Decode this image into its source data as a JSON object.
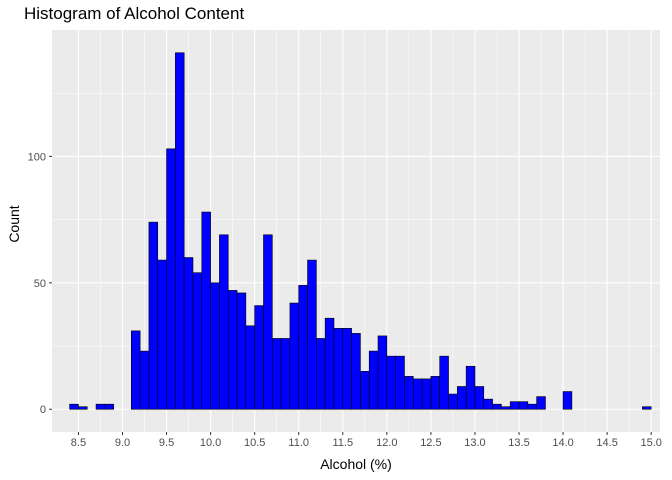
{
  "chart_data": {
    "type": "histogram",
    "title": "Histogram of Alcohol Content",
    "xlabel": "Alcohol (%)",
    "ylabel": "Count",
    "xlim": [
      8.2,
      15.1
    ],
    "ylim": [
      -9,
      150
    ],
    "bin_width": 0.1,
    "bin_start": 8.4,
    "x_ticks": [
      "8.5",
      "9.0",
      "9.5",
      "10.0",
      "10.5",
      "11.0",
      "11.5",
      "12.0",
      "12.5",
      "13.0",
      "13.5",
      "14.0",
      "14.5",
      "15.0"
    ],
    "y_ticks": [
      0,
      50,
      100
    ],
    "counts": [
      2,
      1,
      0,
      2,
      2,
      0,
      0,
      31,
      23,
      74,
      59,
      103,
      141,
      60,
      54,
      78,
      50,
      69,
      47,
      46,
      33,
      41,
      69,
      28,
      28,
      42,
      49,
      59,
      28,
      36,
      32,
      32,
      30,
      15,
      23,
      29,
      21,
      21,
      13,
      12,
      12,
      13,
      21,
      6,
      9,
      17,
      9,
      4,
      2,
      1,
      3,
      3,
      2,
      5,
      0,
      0,
      7,
      0,
      0,
      0,
      0,
      0,
      0,
      0,
      0,
      1
    ],
    "bar_fill": "#0000ff",
    "bar_stroke": "#000000",
    "panel_background": "#ebebeb",
    "grid_major": "#ffffff",
    "grid": true,
    "legend": "none"
  }
}
